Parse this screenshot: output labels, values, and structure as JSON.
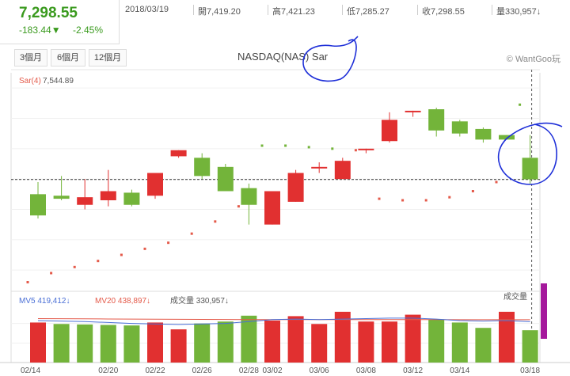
{
  "quote": {
    "price": "7,298.55",
    "change": "-183.44▼",
    "change_pct": "-2.45%"
  },
  "ohlc": {
    "date": "2018/03/19",
    "open": "開7,419.20",
    "high": "高7,421.23",
    "low": "低7,285.27",
    "close": "收7,298.55",
    "volume": "量330,957↓"
  },
  "range_buttons": [
    "3個月",
    "6個月",
    "12個月"
  ],
  "brand": "© WantGoo玩",
  "colors": {
    "up": "#e13030",
    "down": "#73b43a",
    "sar": "#e45a4a",
    "ma5": "#4a6fd6",
    "ma20": "#e45a4a",
    "purple": "#a5199c"
  },
  "chart_data": {
    "type": "candlestick",
    "title": "NASDAQ(NAS) Sar",
    "sar_label": "Sar(4)",
    "sar_value": "7,544.89",
    "x_tick_labels": [
      "02/14",
      "02/20",
      "02/22",
      "02/26",
      "02/28",
      "03/02",
      "03/06",
      "03/08",
      "03/12",
      "03/14",
      "03/18"
    ],
    "price_range": [
      6930,
      7650
    ],
    "last_price_line": 7298.55,
    "candles": [
      {
        "o": 7250,
        "h": 7290,
        "l": 7170,
        "c": 7180
      },
      {
        "o": 7245,
        "h": 7310,
        "l": 7230,
        "c": 7235
      },
      {
        "o": 7215,
        "h": 7300,
        "l": 7200,
        "c": 7240
      },
      {
        "o": 7230,
        "h": 7330,
        "l": 7210,
        "c": 7260
      },
      {
        "o": 7255,
        "h": 7265,
        "l": 7210,
        "c": 7215
      },
      {
        "o": 7245,
        "h": 7320,
        "l": 7235,
        "c": 7320
      },
      {
        "o": 7375,
        "h": 7395,
        "l": 7370,
        "c": 7395
      },
      {
        "o": 7370,
        "h": 7385,
        "l": 7300,
        "c": 7310
      },
      {
        "o": 7340,
        "h": 7350,
        "l": 7260,
        "c": 7260
      },
      {
        "o": 7270,
        "h": 7285,
        "l": 7150,
        "c": 7215
      },
      {
        "o": 7150,
        "h": 7260,
        "l": 7150,
        "c": 7260
      },
      {
        "o": 7225,
        "h": 7330,
        "l": 7225,
        "c": 7320
      },
      {
        "o": 7340,
        "h": 7355,
        "l": 7320,
        "c": 7340
      },
      {
        "o": 7300,
        "h": 7370,
        "l": 7300,
        "c": 7360
      },
      {
        "o": 7395,
        "h": 7400,
        "l": 7385,
        "c": 7400
      },
      {
        "o": 7425,
        "h": 7520,
        "l": 7420,
        "c": 7495
      },
      {
        "o": 7520,
        "h": 7525,
        "l": 7505,
        "c": 7525
      },
      {
        "o": 7530,
        "h": 7535,
        "l": 7440,
        "c": 7460
      },
      {
        "o": 7490,
        "h": 7495,
        "l": 7440,
        "c": 7450
      },
      {
        "o": 7465,
        "h": 7470,
        "l": 7420,
        "c": 7430
      },
      {
        "o": 7445,
        "h": 7445,
        "l": 7430,
        "c": 7430
      },
      {
        "o": 7370,
        "h": 7445,
        "l": 7285,
        "c": 7299
      }
    ],
    "sar": [
      6960,
      6990,
      7010,
      7030,
      7050,
      7070,
      7090,
      7120,
      7160,
      7210,
      7410,
      7410,
      7405,
      7400,
      7395,
      7235,
      7230,
      7230,
      7240,
      7260,
      7290,
      7545
    ],
    "volume_legend": {
      "ma5": "MV5 419,412↓",
      "ma20": "MV20 438,897↓",
      "volume": "成交量 330,957↓",
      "axis": "成交量"
    },
    "volume_range": [
      0,
      600000
    ],
    "volume_values": [
      {
        "v": 410000,
        "up": true
      },
      {
        "v": 395000,
        "up": false
      },
      {
        "v": 390000,
        "up": false
      },
      {
        "v": 385000,
        "up": false
      },
      {
        "v": 380000,
        "up": false
      },
      {
        "v": 410000,
        "up": true
      },
      {
        "v": 340000,
        "up": true
      },
      {
        "v": 400000,
        "up": false
      },
      {
        "v": 420000,
        "up": false
      },
      {
        "v": 480000,
        "up": false
      },
      {
        "v": 430000,
        "up": true
      },
      {
        "v": 475000,
        "up": true
      },
      {
        "v": 395000,
        "up": true
      },
      {
        "v": 520000,
        "up": true
      },
      {
        "v": 420000,
        "up": true
      },
      {
        "v": 420000,
        "up": true
      },
      {
        "v": 490000,
        "up": true
      },
      {
        "v": 440000,
        "up": false
      },
      {
        "v": 410000,
        "up": false
      },
      {
        "v": 355000,
        "up": false
      },
      {
        "v": 520000,
        "up": true
      },
      {
        "v": 331000,
        "up": false
      }
    ],
    "ma5": [
      430000,
      425000,
      420000,
      410000,
      400000,
      395000,
      390000,
      395000,
      400000,
      420000,
      440000,
      445000,
      440000,
      445000,
      450000,
      455000,
      455000,
      445000,
      430000,
      425000,
      430000,
      419000
    ],
    "ma20": [
      450000,
      449000,
      448000,
      446000,
      445000,
      444000,
      443000,
      442000,
      441000,
      440000,
      440000,
      440000,
      440000,
      440000,
      440000,
      440000,
      440000,
      440000,
      439000,
      439000,
      439000,
      438897
    ]
  }
}
